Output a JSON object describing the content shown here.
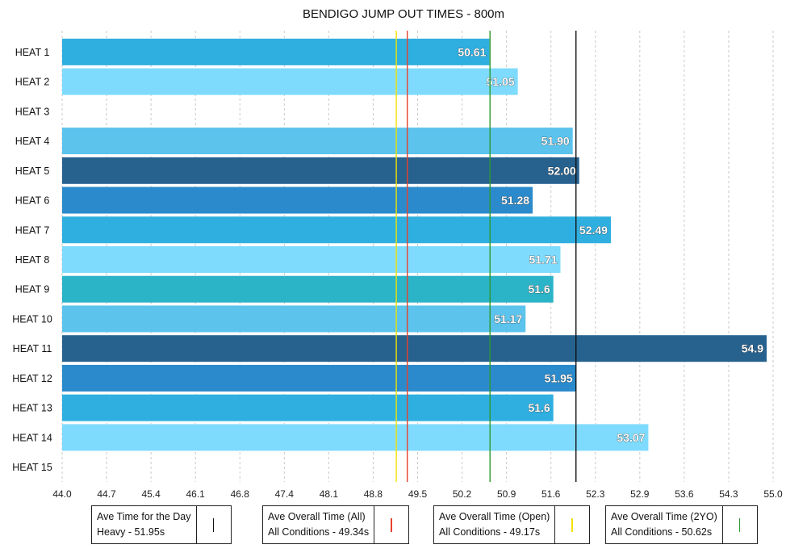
{
  "chart_data": {
    "type": "bar",
    "orientation": "horizontal",
    "title": "BENDIGO JUMP OUT TIMES - 800m",
    "categories": [
      "HEAT 1",
      "HEAT 2",
      "HEAT 3",
      "HEAT 4",
      "HEAT 5",
      "HEAT 6",
      "HEAT 7",
      "HEAT 8",
      "HEAT 9",
      "HEAT 10",
      "HEAT 11",
      "HEAT 12",
      "HEAT 13",
      "HEAT 14",
      "HEAT 15"
    ],
    "values": [
      50.61,
      51.05,
      null,
      51.9,
      52.0,
      51.28,
      52.49,
      51.71,
      51.6,
      51.17,
      54.9,
      51.95,
      51.6,
      53.07,
      null
    ],
    "value_labels": [
      "50.61",
      "51.05",
      "",
      "51.90",
      "52.00",
      "51.28",
      "52.49",
      "51.71",
      "51.6",
      "51.17",
      "54.9",
      "51.95",
      "51.6",
      "53.07",
      ""
    ],
    "bar_colors": [
      "#2fafe0",
      "#7fdbfd",
      "#ffffff",
      "#5bc3ec",
      "#27628f",
      "#2b8acb",
      "#2fafe0",
      "#7fdbfd",
      "#2bb3c8",
      "#5bc3ec",
      "#27628f",
      "#2b8acb",
      "#2fafe0",
      "#7fdbfd",
      "#ffffff"
    ],
    "xlim": [
      44.0,
      55.0
    ],
    "x_ticks": [
      "44.0",
      "44.7",
      "45.4",
      "46.1",
      "46.8",
      "47.4",
      "48.1",
      "48.8",
      "49.5",
      "50.2",
      "50.9",
      "51.6",
      "52.3",
      "52.9",
      "53.6",
      "54.3",
      "55.0"
    ],
    "grid": "vertical dashed",
    "reference_lines": [
      {
        "value": 49.17,
        "color": "#f2e200"
      },
      {
        "value": 49.34,
        "color": "#e8412c"
      },
      {
        "value": 50.62,
        "color": "#2e9a2e"
      },
      {
        "value": 51.95,
        "color": "#111111"
      }
    ]
  },
  "legend": [
    {
      "line1": "Ave Time for the Day",
      "line2": "Heavy - 51.95s",
      "color": "#111111"
    },
    {
      "line1": "Ave Overall Time (All)",
      "line2": "All Conditions - 49.34s",
      "color": "#e8412c"
    },
    {
      "line1": "Ave Overall Time (Open)",
      "line2": "All Conditions - 49.17s",
      "color": "#f2e200"
    },
    {
      "line1": "Ave Overall Time (2YO)",
      "line2": "All Conditions - 50.62s",
      "color": "#2e9a2e"
    }
  ]
}
